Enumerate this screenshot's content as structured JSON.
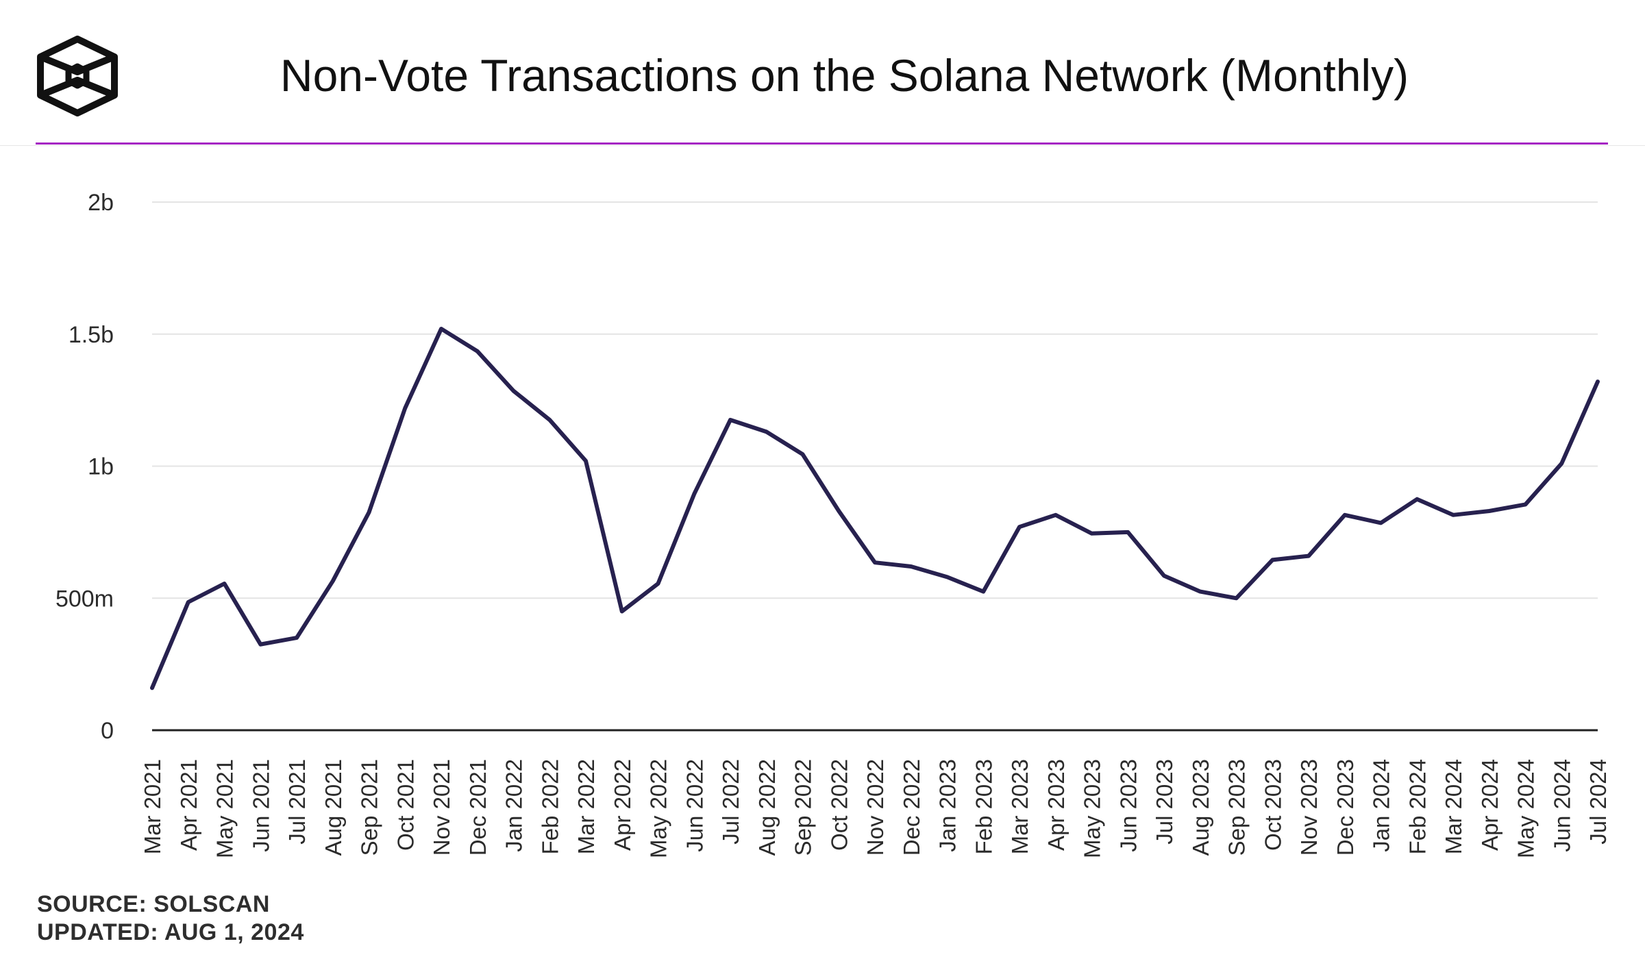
{
  "header": {
    "logo_icon": "the-block-cube-icon",
    "title": "Non-Vote Transactions on the Solana Network (Monthly)",
    "accent_color": "#a523c4"
  },
  "chart_data": {
    "type": "line",
    "title": "Non-Vote Transactions on the Solana Network (Monthly)",
    "xlabel": "",
    "ylabel": "",
    "ylim": [
      0,
      2000000000
    ],
    "y_ticks": [
      0,
      500000000,
      1000000000,
      1500000000,
      2000000000
    ],
    "y_tick_labels": [
      "0",
      "500m",
      "1b",
      "1.5b",
      "2b"
    ],
    "grid": true,
    "legend": "none",
    "line_color": "#27214f",
    "categories": [
      "Mar 2021",
      "Apr 2021",
      "May 2021",
      "Jun 2021",
      "Jul 2021",
      "Aug 2021",
      "Sep 2021",
      "Oct 2021",
      "Nov 2021",
      "Dec 2021",
      "Jan 2022",
      "Feb 2022",
      "Mar 2022",
      "Apr 2022",
      "May 2022",
      "Jun 2022",
      "Jul 2022",
      "Aug 2022",
      "Sep 2022",
      "Oct 2022",
      "Nov 2022",
      "Dec 2022",
      "Jan 2023",
      "Feb 2023",
      "Mar 2023",
      "Apr 2023",
      "May 2023",
      "Jun 2023",
      "Jul 2023",
      "Aug 2023",
      "Sep 2023",
      "Oct 2023",
      "Nov 2023",
      "Dec 2023",
      "Jan 2024",
      "Feb 2024",
      "Mar 2024",
      "Apr 2024",
      "May 2024",
      "Jun 2024",
      "Jul 2024"
    ],
    "series": [
      {
        "values": [
          160000000,
          485000000,
          555000000,
          325000000,
          350000000,
          565000000,
          825000000,
          1220000000,
          1520000000,
          1435000000,
          1285000000,
          1175000000,
          1020000000,
          450000000,
          555000000,
          895000000,
          1175000000,
          1130000000,
          1045000000,
          830000000,
          635000000,
          620000000,
          580000000,
          525000000,
          770000000,
          815000000,
          745000000,
          750000000,
          585000000,
          525000000,
          500000000,
          645000000,
          660000000,
          815000000,
          785000000,
          875000000,
          815000000,
          830000000,
          855000000,
          1010000000,
          1320000000
        ]
      }
    ]
  },
  "footer": {
    "source": "SOURCE: SOLSCAN",
    "updated": "UPDATED: AUG 1, 2024"
  }
}
